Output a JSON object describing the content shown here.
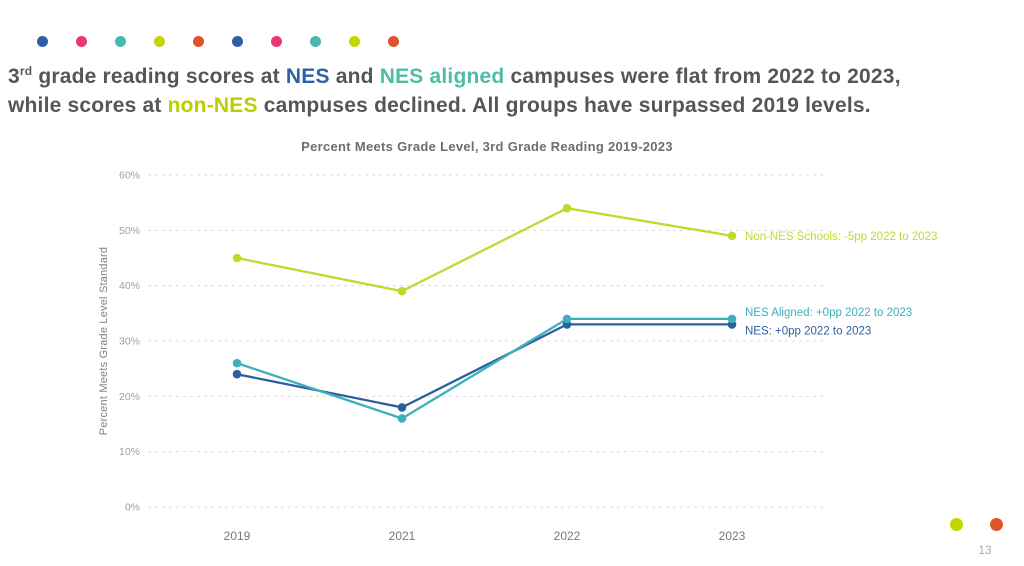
{
  "decoration": {
    "top_dots": [
      "#2e5fa6",
      "#e93872",
      "#4cb8ad",
      "#c3d600",
      "#e0542a",
      "#2e5fa6",
      "#e93872",
      "#4cb8ad",
      "#c3d600",
      "#e0542a"
    ],
    "bottom_dots": [
      "#c3d600",
      "#e0542a"
    ]
  },
  "headline": {
    "default_color": "#55565b",
    "segments": [
      {
        "text": "3"
      },
      {
        "text": "rd",
        "sup": true
      },
      {
        "text": " grade reading scores at "
      },
      {
        "text": "NES",
        "color": "#2d61a8"
      },
      {
        "text": " and "
      },
      {
        "text": "NES aligned",
        "color": "#4fbca6"
      },
      {
        "text": " campuses were flat from 2022 to 2023,"
      },
      {
        "br": true
      },
      {
        "text": "while scores at "
      },
      {
        "text": "non-NES",
        "color": "#b9cf00"
      },
      {
        "text": " campuses declined. All groups have surpassed 2019 levels."
      }
    ]
  },
  "chart_data": {
    "type": "line",
    "title": "Percent Meets Grade Level, 3rd Grade Reading 2019-2023",
    "ylabel": "Percent Meets Grade Level Standard",
    "xlabel": "",
    "categories": [
      "2019",
      "2021",
      "2022",
      "2023"
    ],
    "ylim": [
      0,
      60
    ],
    "ytick_step": 10,
    "ytick_suffix": "%",
    "grid": "horizontal-dashed",
    "legend_position": "inline-right-labels",
    "series": [
      {
        "name": "Non-NES Schools",
        "values": [
          45,
          39,
          54,
          49
        ],
        "color": "#c3d82d",
        "label": "Non-NES Schools: -5pp 2022 to 2023",
        "label_dy": 4
      },
      {
        "name": "NES",
        "values": [
          24,
          18,
          33,
          33
        ],
        "color": "#2b5f9e",
        "label": "NES: +0pp 2022 to 2023",
        "label_dy": 10
      },
      {
        "name": "NES Aligned",
        "values": [
          26,
          16,
          34,
          34
        ],
        "color": "#3db0bb",
        "label": "NES Aligned: +0pp 2022 to 2023",
        "label_dy": -3
      }
    ]
  },
  "page": {
    "number": "13"
  }
}
